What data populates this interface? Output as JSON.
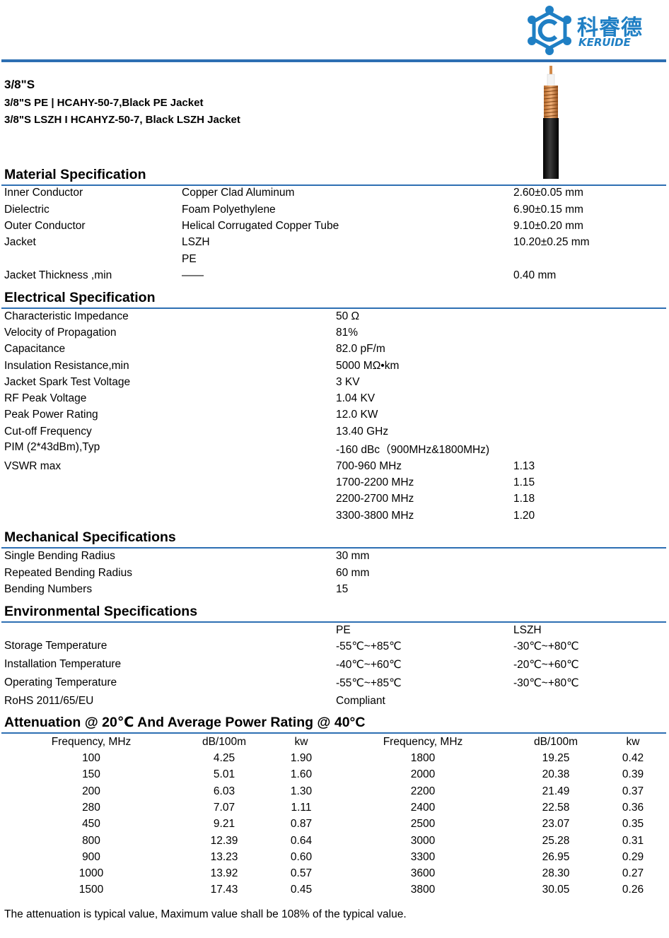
{
  "brand": {
    "name_cn": "科睿德",
    "name_en": "KERUIDE",
    "color": "#1f7fc4"
  },
  "header": {
    "title": "3/8\"S",
    "subtitles": [
      "3/8\"S PE | HCAHY-50-7,Black PE Jacket",
      "3/8\"S LSZH I HCAHYZ-50-7, Black LSZH Jacket"
    ]
  },
  "material": {
    "title": "Material Specification",
    "rows": [
      [
        "Inner Conductor",
        "Copper Clad Aluminum",
        "2.60±0.05 mm"
      ],
      [
        "Dielectric",
        "Foam Polyethylene",
        "6.90±0.15 mm"
      ],
      [
        "Outer Conductor",
        "Helical Corrugated Copper Tube",
        "9.10±0.20 mm"
      ],
      [
        "Jacket",
        "LSZH",
        "10.20±0.25 mm"
      ],
      [
        "",
        "PE",
        ""
      ],
      [
        "Jacket Thickness ,min",
        "——",
        "0.40 mm"
      ]
    ]
  },
  "electrical": {
    "title": "Electrical Specification",
    "rows": [
      [
        "Characteristic Impedance",
        "50 Ω"
      ],
      [
        "Velocity of Propagation",
        "81%"
      ],
      [
        "Capacitance",
        "82.0 pF/m"
      ],
      [
        "Insulation Resistance,min",
        "5000 MΩ•km"
      ],
      [
        "Jacket Spark Test Voltage",
        "3 KV"
      ],
      [
        "RF Peak Voltage",
        "1.04 KV"
      ],
      [
        "Peak Power Rating",
        "12.0 KW"
      ],
      [
        "Cut-off Frequency",
        "13.40 GHz"
      ],
      [
        "PIM (2*43dBm),Typ",
        "-160 dBc（900MHz&1800MHz)"
      ]
    ],
    "vswr_label": "VSWR max",
    "vswr": [
      [
        "700-960 MHz",
        "1.13"
      ],
      [
        "1700-2200 MHz",
        "1.15"
      ],
      [
        "2200-2700 MHz",
        "1.18"
      ],
      [
        "3300-3800 MHz",
        "1.20"
      ]
    ]
  },
  "mechanical": {
    "title": "Mechanical Specifications",
    "rows": [
      [
        "Single Bending Radius",
        "30 mm"
      ],
      [
        "Repeated Bending Radius",
        "60 mm"
      ],
      [
        "Bending Numbers",
        "15"
      ]
    ]
  },
  "environmental": {
    "title": "Environmental Specifications",
    "col_pe": "PE",
    "col_lszh": "LSZH",
    "rows": [
      [
        "Storage Temperature",
        "-55℃~+85℃",
        "-30℃~+80℃"
      ],
      [
        "Installation Temperature",
        "-40℃~+60℃",
        "-20℃~+60℃"
      ],
      [
        "Operating Temperature",
        "-55℃~+85℃",
        "-30℃~+80℃"
      ],
      [
        "RoHS 2011/65/EU",
        "Compliant",
        ""
      ]
    ]
  },
  "attenuation": {
    "title": "Attenuation @ 20℃ And Average Power Rating @ 40°C",
    "headers": [
      "Frequency, MHz",
      "dB/100m",
      "kw",
      "Frequency, MHz",
      "dB/100m",
      "kw"
    ],
    "left": [
      [
        "100",
        "4.25",
        "1.90"
      ],
      [
        "150",
        "5.01",
        "1.60"
      ],
      [
        "200",
        "6.03",
        "1.30"
      ],
      [
        "280",
        "7.07",
        "1.11"
      ],
      [
        "450",
        "9.21",
        "0.87"
      ],
      [
        "800",
        "12.39",
        "0.64"
      ],
      [
        "900",
        "13.23",
        "0.60"
      ],
      [
        "1000",
        "13.92",
        "0.57"
      ],
      [
        "1500",
        "17.43",
        "0.45"
      ]
    ],
    "right": [
      [
        "1800",
        "19.25",
        "0.42"
      ],
      [
        "2000",
        "20.38",
        "0.39"
      ],
      [
        "2200",
        "21.49",
        "0.37"
      ],
      [
        "2400",
        "22.58",
        "0.36"
      ],
      [
        "2500",
        "23.07",
        "0.35"
      ],
      [
        "3000",
        "25.28",
        "0.31"
      ],
      [
        "3300",
        "26.95",
        "0.29"
      ],
      [
        "3600",
        "28.30",
        "0.27"
      ],
      [
        "3800",
        "30.05",
        "0.26"
      ]
    ]
  },
  "note": "The attenuation is typical value, Maximum value shall be 108% of the typical value."
}
